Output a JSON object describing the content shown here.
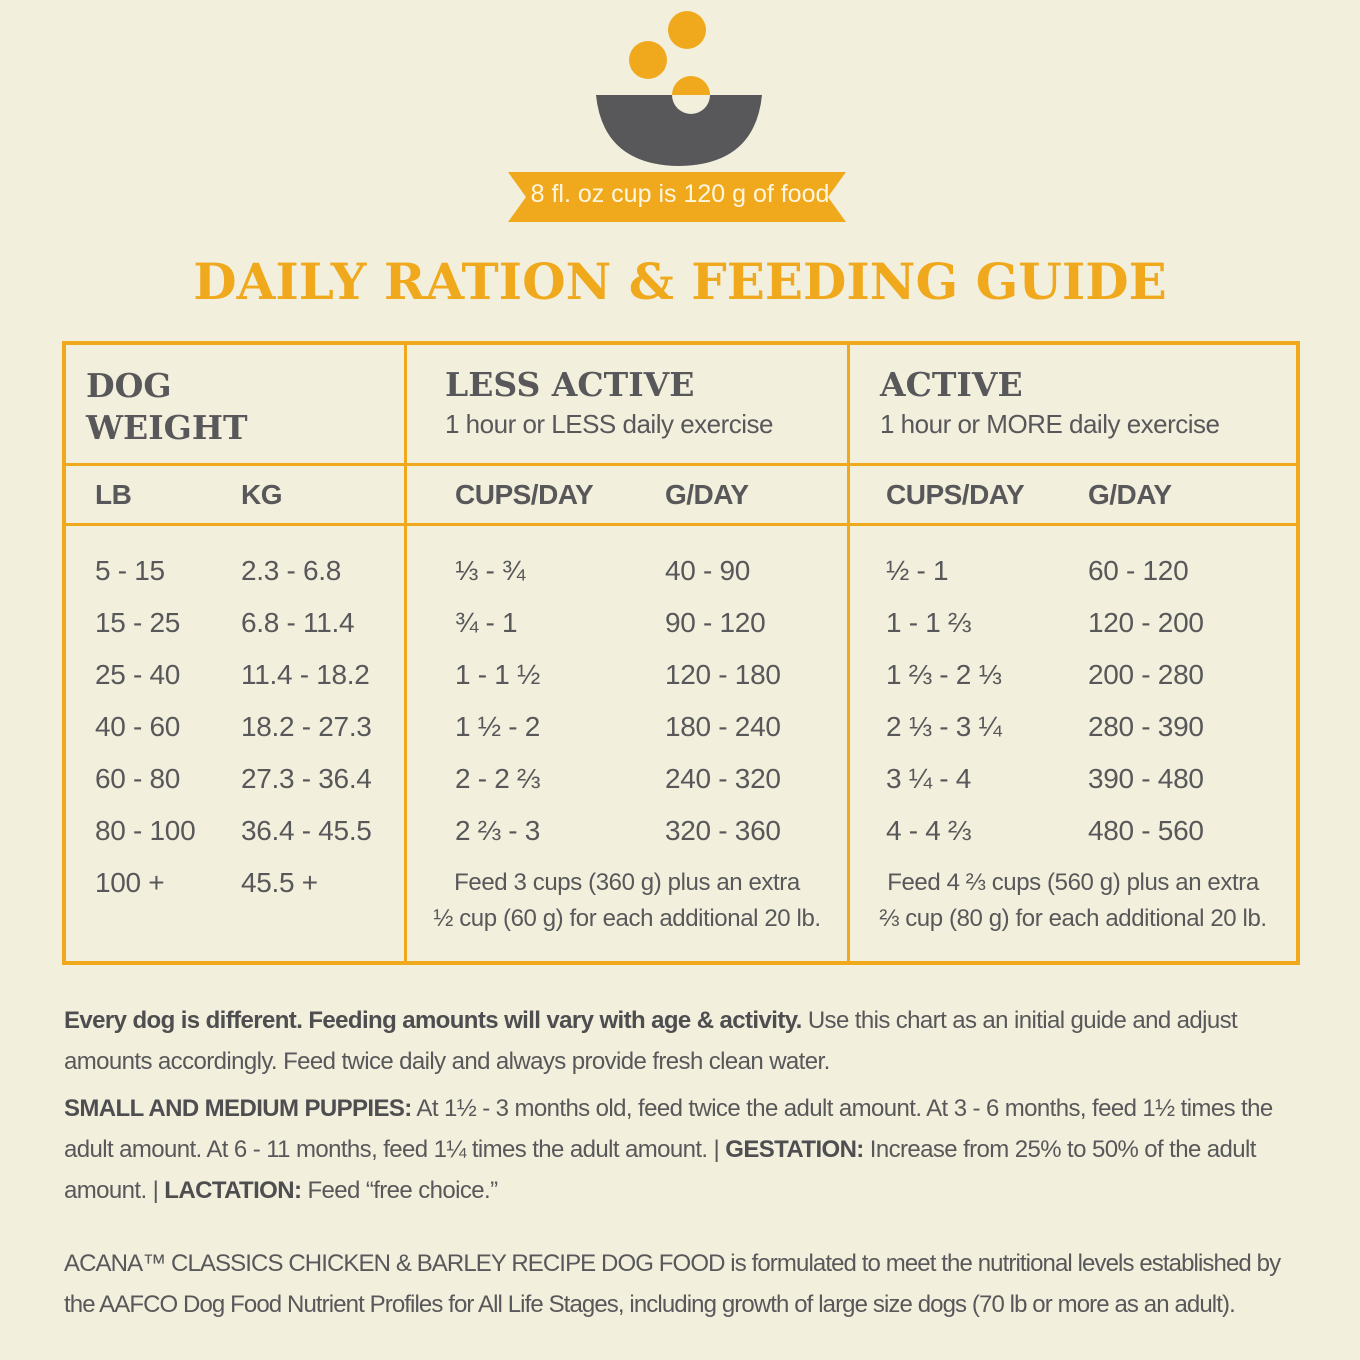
{
  "badge": "8 fl. oz cup is 120 g of food",
  "title": "DAILY RATION & FEEDING GUIDE",
  "table": {
    "headers": {
      "dog_weight": "DOG WEIGHT",
      "less_active": {
        "title": "LESS ACTIVE",
        "subtitle": "1 hour or LESS daily exercise"
      },
      "active": {
        "title": "ACTIVE",
        "subtitle": "1 hour or MORE daily exercise"
      }
    },
    "columns": [
      "LB",
      "KG",
      "CUPS/DAY",
      "G/DAY",
      "CUPS/DAY",
      "G/DAY"
    ],
    "rows": [
      [
        "5 - 15",
        "2.3 - 6.8",
        "⅓ - ¾",
        "40 - 90",
        "½ - 1",
        "60 - 120"
      ],
      [
        "15 - 25",
        "6.8 - 11.4",
        "¾ - 1",
        "90 - 120",
        "1 - 1 ⅔",
        "120 - 200"
      ],
      [
        "25 - 40",
        "11.4 - 18.2",
        "1 - 1 ½",
        "120 - 180",
        "1 ⅔ - 2 ⅓",
        "200 - 280"
      ],
      [
        "40 - 60",
        "18.2 - 27.3",
        "1 ½ - 2",
        "180 - 240",
        "2 ⅓ - 3 ¼",
        "280 - 390"
      ],
      [
        "60 - 80",
        "27.3 - 36.4",
        "2 - 2 ⅔",
        "240 - 320",
        "3 ¼ - 4",
        "390 - 480"
      ],
      [
        "80 - 100",
        "36.4 - 45.5",
        "2 ⅔ - 3",
        "320 - 360",
        "4 - 4 ⅔",
        "480 - 560"
      ]
    ],
    "last_row": {
      "lb": "100 +",
      "kg": "45.5 +",
      "less_active_note": [
        "Feed 3 cups (360 g) plus an extra",
        "½ cup (60 g) for each additional 20 lb."
      ],
      "active_note": [
        "Feed 4 ⅔ cups (560 g) plus an extra",
        "⅔ cup (80 g) for each additional 20 lb."
      ]
    }
  },
  "notes": {
    "general": [
      "Every dog is different. Feeding amounts will vary with age & activity.",
      " Use this chart as an initial guide and adjust amounts accordingly. Feed twice daily and always provide fresh clean water."
    ],
    "puppies": [
      "SMALL AND MEDIUM PUPPIES:",
      " At 1½ - 3 months old, feed twice the adult amount. At 3 - 6 months, feed 1½ times the adult amount. At 6 - 11 months, feed 1¼ times the adult amount. | ",
      "GESTATION:",
      " Increase from 25% to 50% of the adult amount. | ",
      "LACTATION:",
      " Feed “free choice.”"
    ],
    "disclaimer": "ACANA™ CLASSICS CHICKEN & BARLEY RECIPE DOG FOOD is formulated to meet the nutritional levels established by the AAFCO Dog Food Nutrient Profiles for All Life Stages, including growth of large size dogs (70 lb or more as an adult)."
  }
}
